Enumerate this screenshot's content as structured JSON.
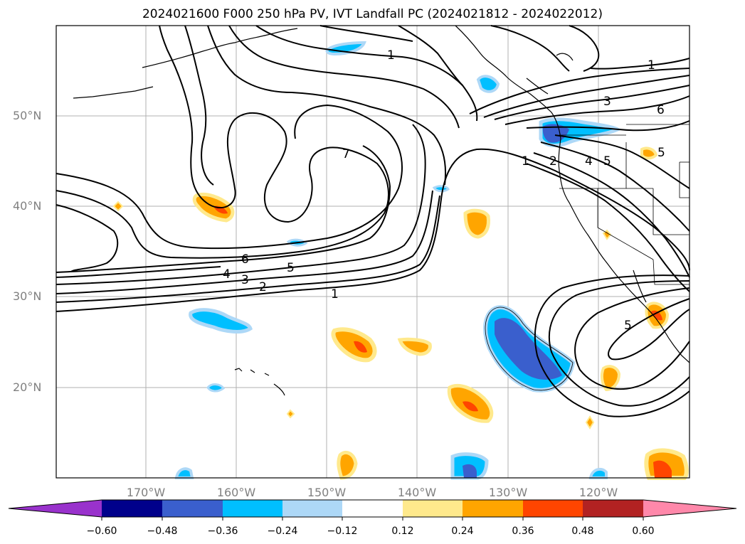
{
  "title": "2024021600 F000 250 hPa PV, IVT Landfall PC (2024021812 - 2024022012)",
  "map": {
    "lat_labels": [
      "50°N",
      "40°N",
      "30°N",
      "20°N"
    ],
    "lon_labels": [
      "170°W",
      "160°W",
      "150°W",
      "140°W",
      "130°W",
      "120°W"
    ],
    "contour_labels": [
      "1",
      "1",
      "1",
      "1",
      "2",
      "2",
      "3",
      "3",
      "4",
      "4",
      "5",
      "5",
      "5",
      "6",
      "6",
      "7",
      "5"
    ]
  },
  "colorbar": {
    "labels": [
      "−0.60",
      "−0.48",
      "−0.36",
      "−0.24",
      "−0.12",
      "0.12",
      "0.24",
      "0.36",
      "0.48",
      "0.60"
    ],
    "colors": [
      "#9932cc",
      "#00008b",
      "#3a5fcd",
      "#00bfff",
      "#add8f7",
      "#ffffff",
      "#ffe98c",
      "#ffa500",
      "#ff4500",
      "#b22222",
      "#ff88aa"
    ]
  }
}
